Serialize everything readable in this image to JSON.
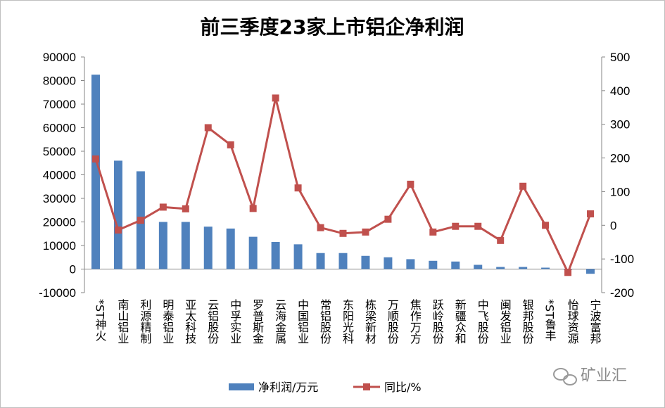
{
  "chart_data": {
    "type": "bar",
    "title": "前三季度23家上市铝企净利润",
    "categories": [
      "*ST神火",
      "南山铝业",
      "利源精制",
      "明泰铝业",
      "亚太科技",
      "云铝股份",
      "中孚实业",
      "罗普斯金",
      "云海金属",
      "中国铝业",
      "常铝股份",
      "东阳光科",
      "栋梁新材",
      "万顺股份",
      "焦作万方",
      "跃岭股份",
      "新疆众和",
      "中飞股份",
      "闽发铝业",
      "银邦股份",
      "*ST鲁丰",
      "怡球资源",
      "宁波富邦"
    ],
    "series": [
      {
        "name": "净利润/万元",
        "type": "bar",
        "axis": "left",
        "color": "#4f81bd",
        "values": [
          82500,
          46000,
          41500,
          20000,
          20000,
          18000,
          17200,
          13700,
          11500,
          10500,
          6800,
          6800,
          5600,
          5000,
          4200,
          3500,
          3200,
          1800,
          900,
          900,
          600,
          -300,
          -2000
        ]
      },
      {
        "name": "同比/%",
        "type": "line",
        "axis": "right",
        "color": "#c0504d",
        "values": [
          197,
          -14,
          15,
          54,
          49,
          290,
          239,
          50,
          378,
          111,
          -7,
          -24,
          -20,
          18,
          122,
          -20,
          -3,
          -3,
          -45,
          116,
          0,
          -140,
          34
        ]
      }
    ],
    "y_left": {
      "min": -10000,
      "max": 90000,
      "ticks": [
        "-10000",
        "0",
        "10000",
        "20000",
        "30000",
        "40000",
        "50000",
        "60000",
        "70000",
        "80000",
        "90000"
      ]
    },
    "y_right": {
      "min": -200,
      "max": 500,
      "ticks": [
        "-200",
        "-100",
        "0",
        "100",
        "200",
        "300",
        "400",
        "500"
      ]
    },
    "legend": {
      "position": "bottom",
      "items": [
        "净利润/万元",
        "同比/%"
      ]
    },
    "watermark": "矿业汇"
  }
}
